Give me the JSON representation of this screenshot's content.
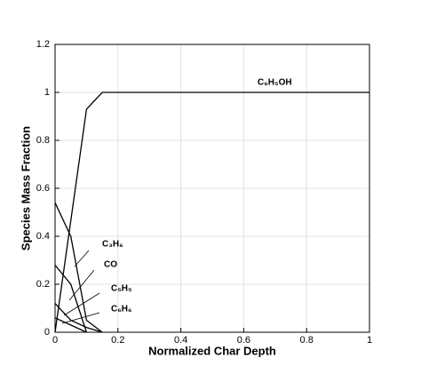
{
  "chart_data": {
    "type": "line",
    "xlabel": "Normalized Char Depth",
    "ylabel": "Species Mass Fraction",
    "xlim": [
      0,
      1
    ],
    "ylim": [
      0,
      1.2
    ],
    "xticks": [
      0,
      0.2,
      0.4,
      0.6,
      0.8,
      1
    ],
    "yticks": [
      0,
      0.2,
      0.4,
      0.6,
      0.8,
      1,
      1.2
    ],
    "grid": true,
    "series": [
      {
        "name": "C₆H₅OH",
        "color": "#000000",
        "x": [
          0,
          0.1,
          0.15,
          1
        ],
        "values": [
          0,
          0.93,
          1,
          1
        ]
      },
      {
        "name": "C₃H₆",
        "color": "#000000",
        "x": [
          0,
          0.05,
          0.1,
          0.15
        ],
        "values": [
          0.54,
          0.4,
          0.05,
          0
        ]
      },
      {
        "name": "CO",
        "color": "#000000",
        "x": [
          0,
          0.05,
          0.1
        ],
        "values": [
          0.28,
          0.2,
          0
        ]
      },
      {
        "name": "C₅H₅",
        "color": "#000000",
        "x": [
          0,
          0.05,
          0.1,
          0.15
        ],
        "values": [
          0.12,
          0.05,
          0.02,
          0
        ]
      },
      {
        "name": "C₆H₆",
        "color": "#000000",
        "x": [
          0,
          0.05,
          0.1
        ],
        "values": [
          0.06,
          0.03,
          0
        ]
      }
    ]
  }
}
